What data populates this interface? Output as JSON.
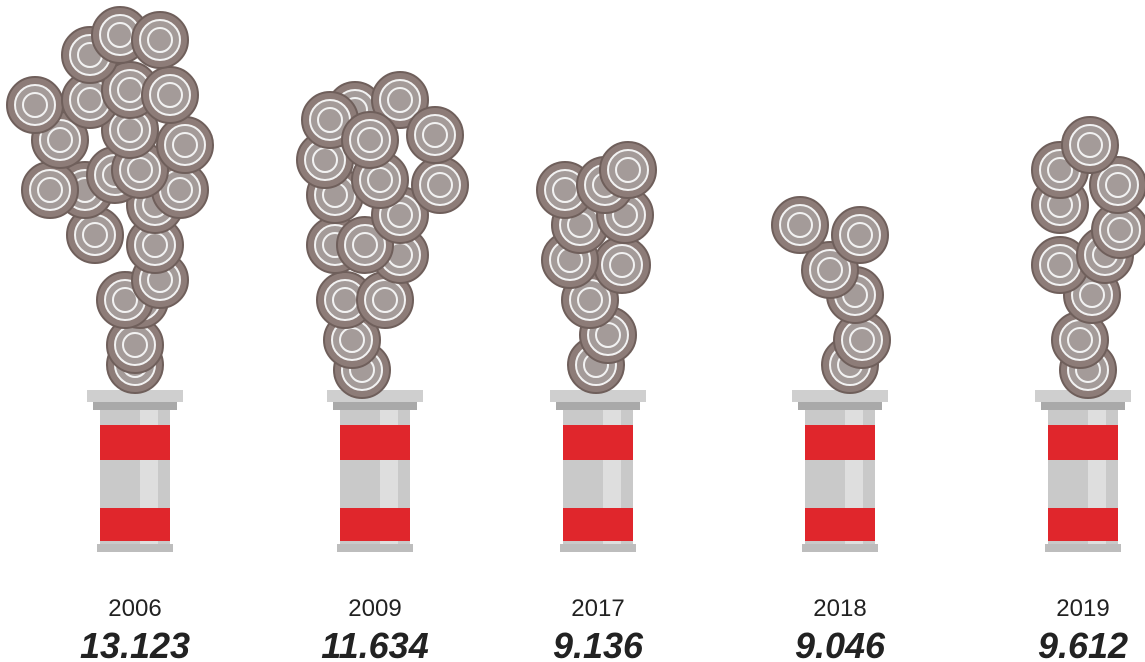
{
  "items": [
    {
      "label": "2006",
      "value": "13.123"
    },
    {
      "label": "2009",
      "value": "11.634"
    },
    {
      "label": "2017",
      "value": "9.136"
    },
    {
      "label": "2018",
      "value": "9.046"
    },
    {
      "label": "2019",
      "value": "9.612"
    }
  ]
}
